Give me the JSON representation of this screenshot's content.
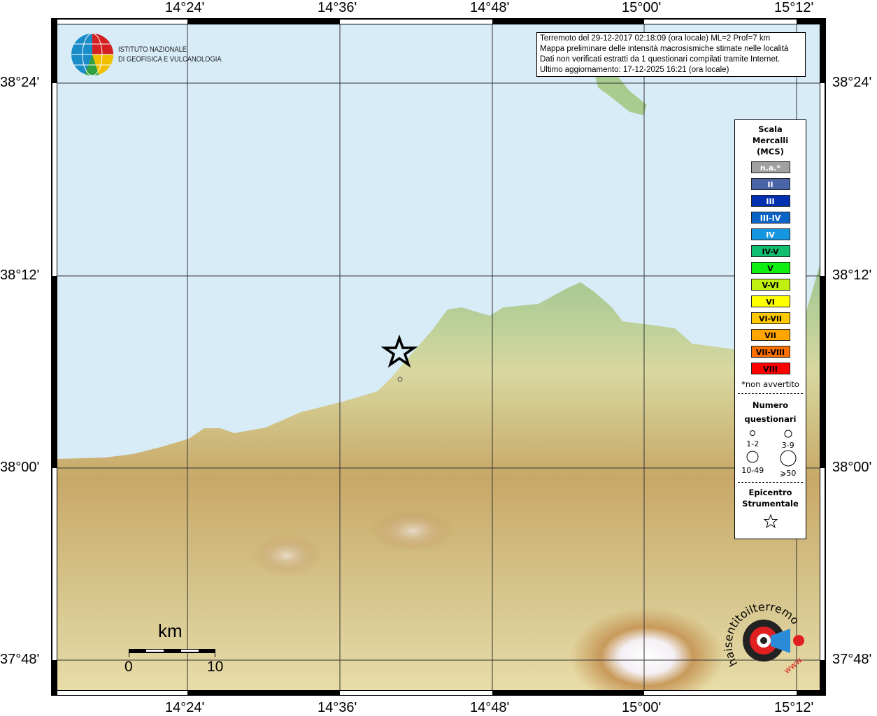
{
  "axes": {
    "lon_ticks": [
      "14°24'",
      "14°36'",
      "14°48'",
      "15°00'",
      "15°12'"
    ],
    "lat_ticks": [
      "38°24'",
      "38°12'",
      "38°00'",
      "37°48'"
    ]
  },
  "logo": {
    "text_line1": "ISTITUTO NAZIONALE",
    "text_line2": "DI GEOFISICA E VULCANOLOGIA"
  },
  "info": {
    "lines": [
      "Terremoto del 29-12-2017 02:18:09 (ora locale) ML=2 Prof=7 km",
      "Mappa preliminare delle intensità macrosismiche stimate nelle località",
      "Dati non verificati estratti da 1 questionari compilati tramite Internet.",
      "Ultimo aggiornamento: 17-12-2025 16:21 (ora locale)"
    ]
  },
  "legend": {
    "title": [
      "Scala",
      "Mercalli",
      "(MCS)"
    ],
    "classes": [
      {
        "label": "n.a.*",
        "color": "#a0a0a0",
        "text": "#fff"
      },
      {
        "label": "II",
        "color": "#4a64a8",
        "text": "#fff"
      },
      {
        "label": "III",
        "color": "#0030b0",
        "text": "#fff"
      },
      {
        "label": "III-IV",
        "color": "#0a64c8",
        "text": "#fff"
      },
      {
        "label": "IV",
        "color": "#1496e0",
        "text": "#fff"
      },
      {
        "label": "IV-V",
        "color": "#10c070",
        "text": "#000"
      },
      {
        "label": "V",
        "color": "#10f010",
        "text": "#000"
      },
      {
        "label": "V-VI",
        "color": "#c0f010",
        "text": "#000"
      },
      {
        "label": "VI",
        "color": "#ffff00",
        "text": "#000"
      },
      {
        "label": "VI-VII",
        "color": "#ffc800",
        "text": "#000"
      },
      {
        "label": "VII",
        "color": "#ffa500",
        "text": "#000"
      },
      {
        "label": "VII-VIII",
        "color": "#ff7000",
        "text": "#000"
      },
      {
        "label": "VIII",
        "color": "#ff0000",
        "text": "#000"
      }
    ],
    "note": "*non avvertito",
    "count_title": [
      "Numero",
      "questionari"
    ],
    "counts": [
      "1-2",
      "3-9",
      "10-49",
      "⩾50"
    ],
    "epicenter_title": [
      "Epicentro",
      "Strumentale"
    ]
  },
  "scale": {
    "unit": "km",
    "min": "0",
    "max": "10"
  },
  "logo2": {
    "text": "haisentitoilterremoto.it",
    "www": "www."
  },
  "colors": {
    "sea": "#d8ecf8",
    "epicenter": "#000000"
  }
}
